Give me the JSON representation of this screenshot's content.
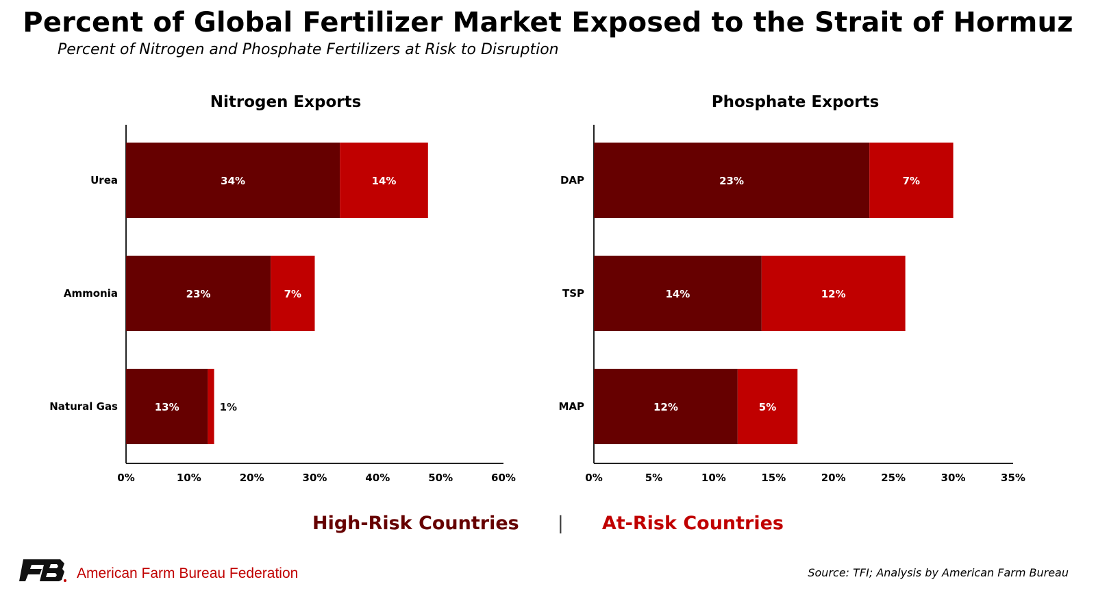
{
  "title": "Percent of Global Fertilizer Market Exposed to the Strait of Hormuz",
  "subtitle": "Percent of Nitrogen and Phosphate Fertilizers at Risk to Disruption",
  "colors": {
    "high_risk": "#660000",
    "at_risk": "#c00000"
  },
  "legend": {
    "high_risk": "High-Risk Countries",
    "separator": "|",
    "at_risk": "At-Risk Countries"
  },
  "footer": {
    "org": "American Farm Bureau Federation",
    "logo_icon": "afbf-logo-icon",
    "source": "Source: TFI; Analysis by American Farm Bureau"
  },
  "chart_data": [
    {
      "type": "bar",
      "orientation": "horizontal",
      "stacked": true,
      "title": "Nitrogen Exports",
      "categories": [
        "Urea",
        "Ammonia",
        "Natural Gas"
      ],
      "series": [
        {
          "name": "High-Risk Countries",
          "values": [
            34,
            23,
            13
          ]
        },
        {
          "name": "At-Risk Countries",
          "values": [
            14,
            7,
            1
          ]
        }
      ],
      "data_labels": {
        "high_risk": [
          "34%",
          "23%",
          "13%"
        ],
        "at_risk": [
          "14%",
          "7%",
          "1%"
        ]
      },
      "xlim": [
        0,
        60
      ],
      "xticks": [
        0,
        10,
        20,
        30,
        40,
        50,
        60
      ],
      "xticklabels": [
        "0%",
        "10%",
        "20%",
        "30%",
        "40%",
        "50%",
        "60%"
      ],
      "grid": false
    },
    {
      "type": "bar",
      "orientation": "horizontal",
      "stacked": true,
      "title": "Phosphate Exports",
      "categories": [
        "DAP",
        "TSP",
        "MAP"
      ],
      "series": [
        {
          "name": "High-Risk Countries",
          "values": [
            23,
            14,
            12
          ]
        },
        {
          "name": "At-Risk Countries",
          "values": [
            7,
            12,
            5
          ]
        }
      ],
      "data_labels": {
        "high_risk": [
          "23%",
          "14%",
          "12%"
        ],
        "at_risk": [
          "7%",
          "12%",
          "5%"
        ]
      },
      "xlim": [
        0,
        35
      ],
      "xticks": [
        0,
        5,
        10,
        15,
        20,
        25,
        30,
        35
      ],
      "xticklabels": [
        "0%",
        "5%",
        "10%",
        "15%",
        "20%",
        "25%",
        "30%",
        "35%"
      ],
      "grid": false
    }
  ]
}
